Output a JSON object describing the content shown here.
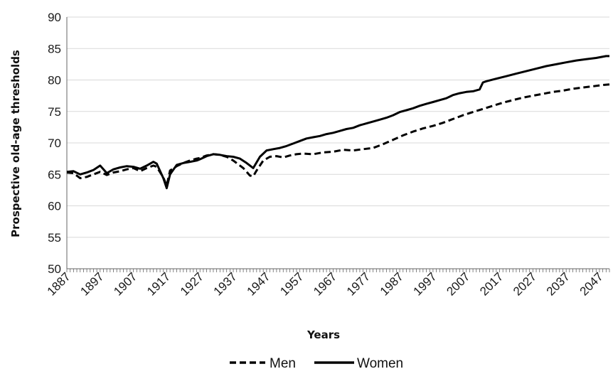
{
  "chart_data": {
    "type": "line",
    "xlabel": "Years",
    "ylabel": "Prospective old-age thresholds",
    "xlim": [
      1887,
      2050
    ],
    "ylim": [
      50,
      90
    ],
    "yticks": [
      50,
      55,
      60,
      65,
      70,
      75,
      80,
      85,
      90
    ],
    "xticks": [
      1887,
      1897,
      1907,
      1917,
      1927,
      1937,
      1947,
      1957,
      1967,
      1977,
      1987,
      1997,
      2007,
      2017,
      2027,
      2037,
      2047
    ],
    "grid": true,
    "legend_position": "bottom",
    "series": [
      {
        "name": "Men",
        "style": "dashed",
        "color": "#000000",
        "x": [
          1887,
          1889,
          1891,
          1893,
          1895,
          1897,
          1899,
          1901,
          1903,
          1905,
          1907,
          1909,
          1911,
          1913,
          1914,
          1916,
          1917,
          1918,
          1920,
          1922,
          1924,
          1926,
          1927,
          1929,
          1931,
          1933,
          1935,
          1937,
          1940,
          1942,
          1943,
          1944,
          1946,
          1948,
          1950,
          1952,
          1954,
          1956,
          1958,
          1961,
          1964,
          1967,
          1970,
          1973,
          1976,
          1979,
          1982,
          1985,
          1988,
          1991,
          1994,
          1997,
          2000,
          2003,
          2006,
          2009,
          2012,
          2015,
          2018,
          2021,
          2024,
          2027,
          2030,
          2033,
          2036,
          2039,
          2042,
          2045,
          2048,
          2050
        ],
        "values": [
          65.3,
          65.2,
          64.4,
          64.6,
          65.0,
          65.4,
          64.9,
          65.3,
          65.5,
          65.8,
          66.0,
          65.5,
          66.0,
          66.4,
          66.2,
          64.5,
          63.2,
          65.6,
          66.3,
          66.8,
          67.2,
          67.5,
          67.6,
          68.0,
          68.2,
          68.1,
          67.8,
          67.2,
          66.0,
          64.8,
          64.7,
          65.6,
          67.2,
          67.8,
          67.9,
          67.7,
          68.0,
          68.2,
          68.3,
          68.2,
          68.5,
          68.6,
          68.9,
          68.8,
          69.0,
          69.2,
          69.8,
          70.5,
          71.2,
          71.8,
          72.3,
          72.7,
          73.2,
          73.8,
          74.4,
          74.9,
          75.4,
          75.9,
          76.4,
          76.8,
          77.2,
          77.5,
          77.8,
          78.1,
          78.3,
          78.6,
          78.8,
          79.0,
          79.2,
          79.3
        ]
      },
      {
        "name": "Women",
        "style": "solid",
        "color": "#000000",
        "x": [
          1887,
          1889,
          1891,
          1893,
          1895,
          1897,
          1899,
          1901,
          1903,
          1905,
          1907,
          1909,
          1911,
          1913,
          1914,
          1916,
          1917,
          1918,
          1920,
          1922,
          1924,
          1926,
          1927,
          1929,
          1931,
          1933,
          1935,
          1937,
          1939,
          1941,
          1943,
          1945,
          1947,
          1949,
          1951,
          1953,
          1955,
          1957,
          1959,
          1961,
          1963,
          1965,
          1967,
          1969,
          1971,
          1973,
          1975,
          1977,
          1979,
          1981,
          1983,
          1985,
          1987,
          1989,
          1991,
          1993,
          1995,
          1997,
          1999,
          2001,
          2003,
          2005,
          2007,
          2009,
          2011,
          2012,
          2013,
          2016,
          2019,
          2022,
          2025,
          2028,
          2031,
          2034,
          2037,
          2040,
          2043,
          2046,
          2049,
          2050
        ],
        "values": [
          65.4,
          65.5,
          65.0,
          65.3,
          65.7,
          66.4,
          65.2,
          65.8,
          66.1,
          66.3,
          66.2,
          65.9,
          66.4,
          67.0,
          66.7,
          64.4,
          62.8,
          65.0,
          66.5,
          66.8,
          67.0,
          67.2,
          67.4,
          67.9,
          68.2,
          68.1,
          67.9,
          67.8,
          67.5,
          66.8,
          66.0,
          67.8,
          68.8,
          69.0,
          69.2,
          69.5,
          69.9,
          70.3,
          70.7,
          70.9,
          71.1,
          71.4,
          71.6,
          71.9,
          72.2,
          72.4,
          72.8,
          73.1,
          73.4,
          73.7,
          74.0,
          74.4,
          74.9,
          75.2,
          75.5,
          75.9,
          76.2,
          76.5,
          76.8,
          77.1,
          77.6,
          77.9,
          78.1,
          78.2,
          78.5,
          79.6,
          79.8,
          80.2,
          80.6,
          81.0,
          81.4,
          81.8,
          82.2,
          82.5,
          82.8,
          83.1,
          83.3,
          83.5,
          83.8,
          83.8
        ]
      }
    ]
  }
}
